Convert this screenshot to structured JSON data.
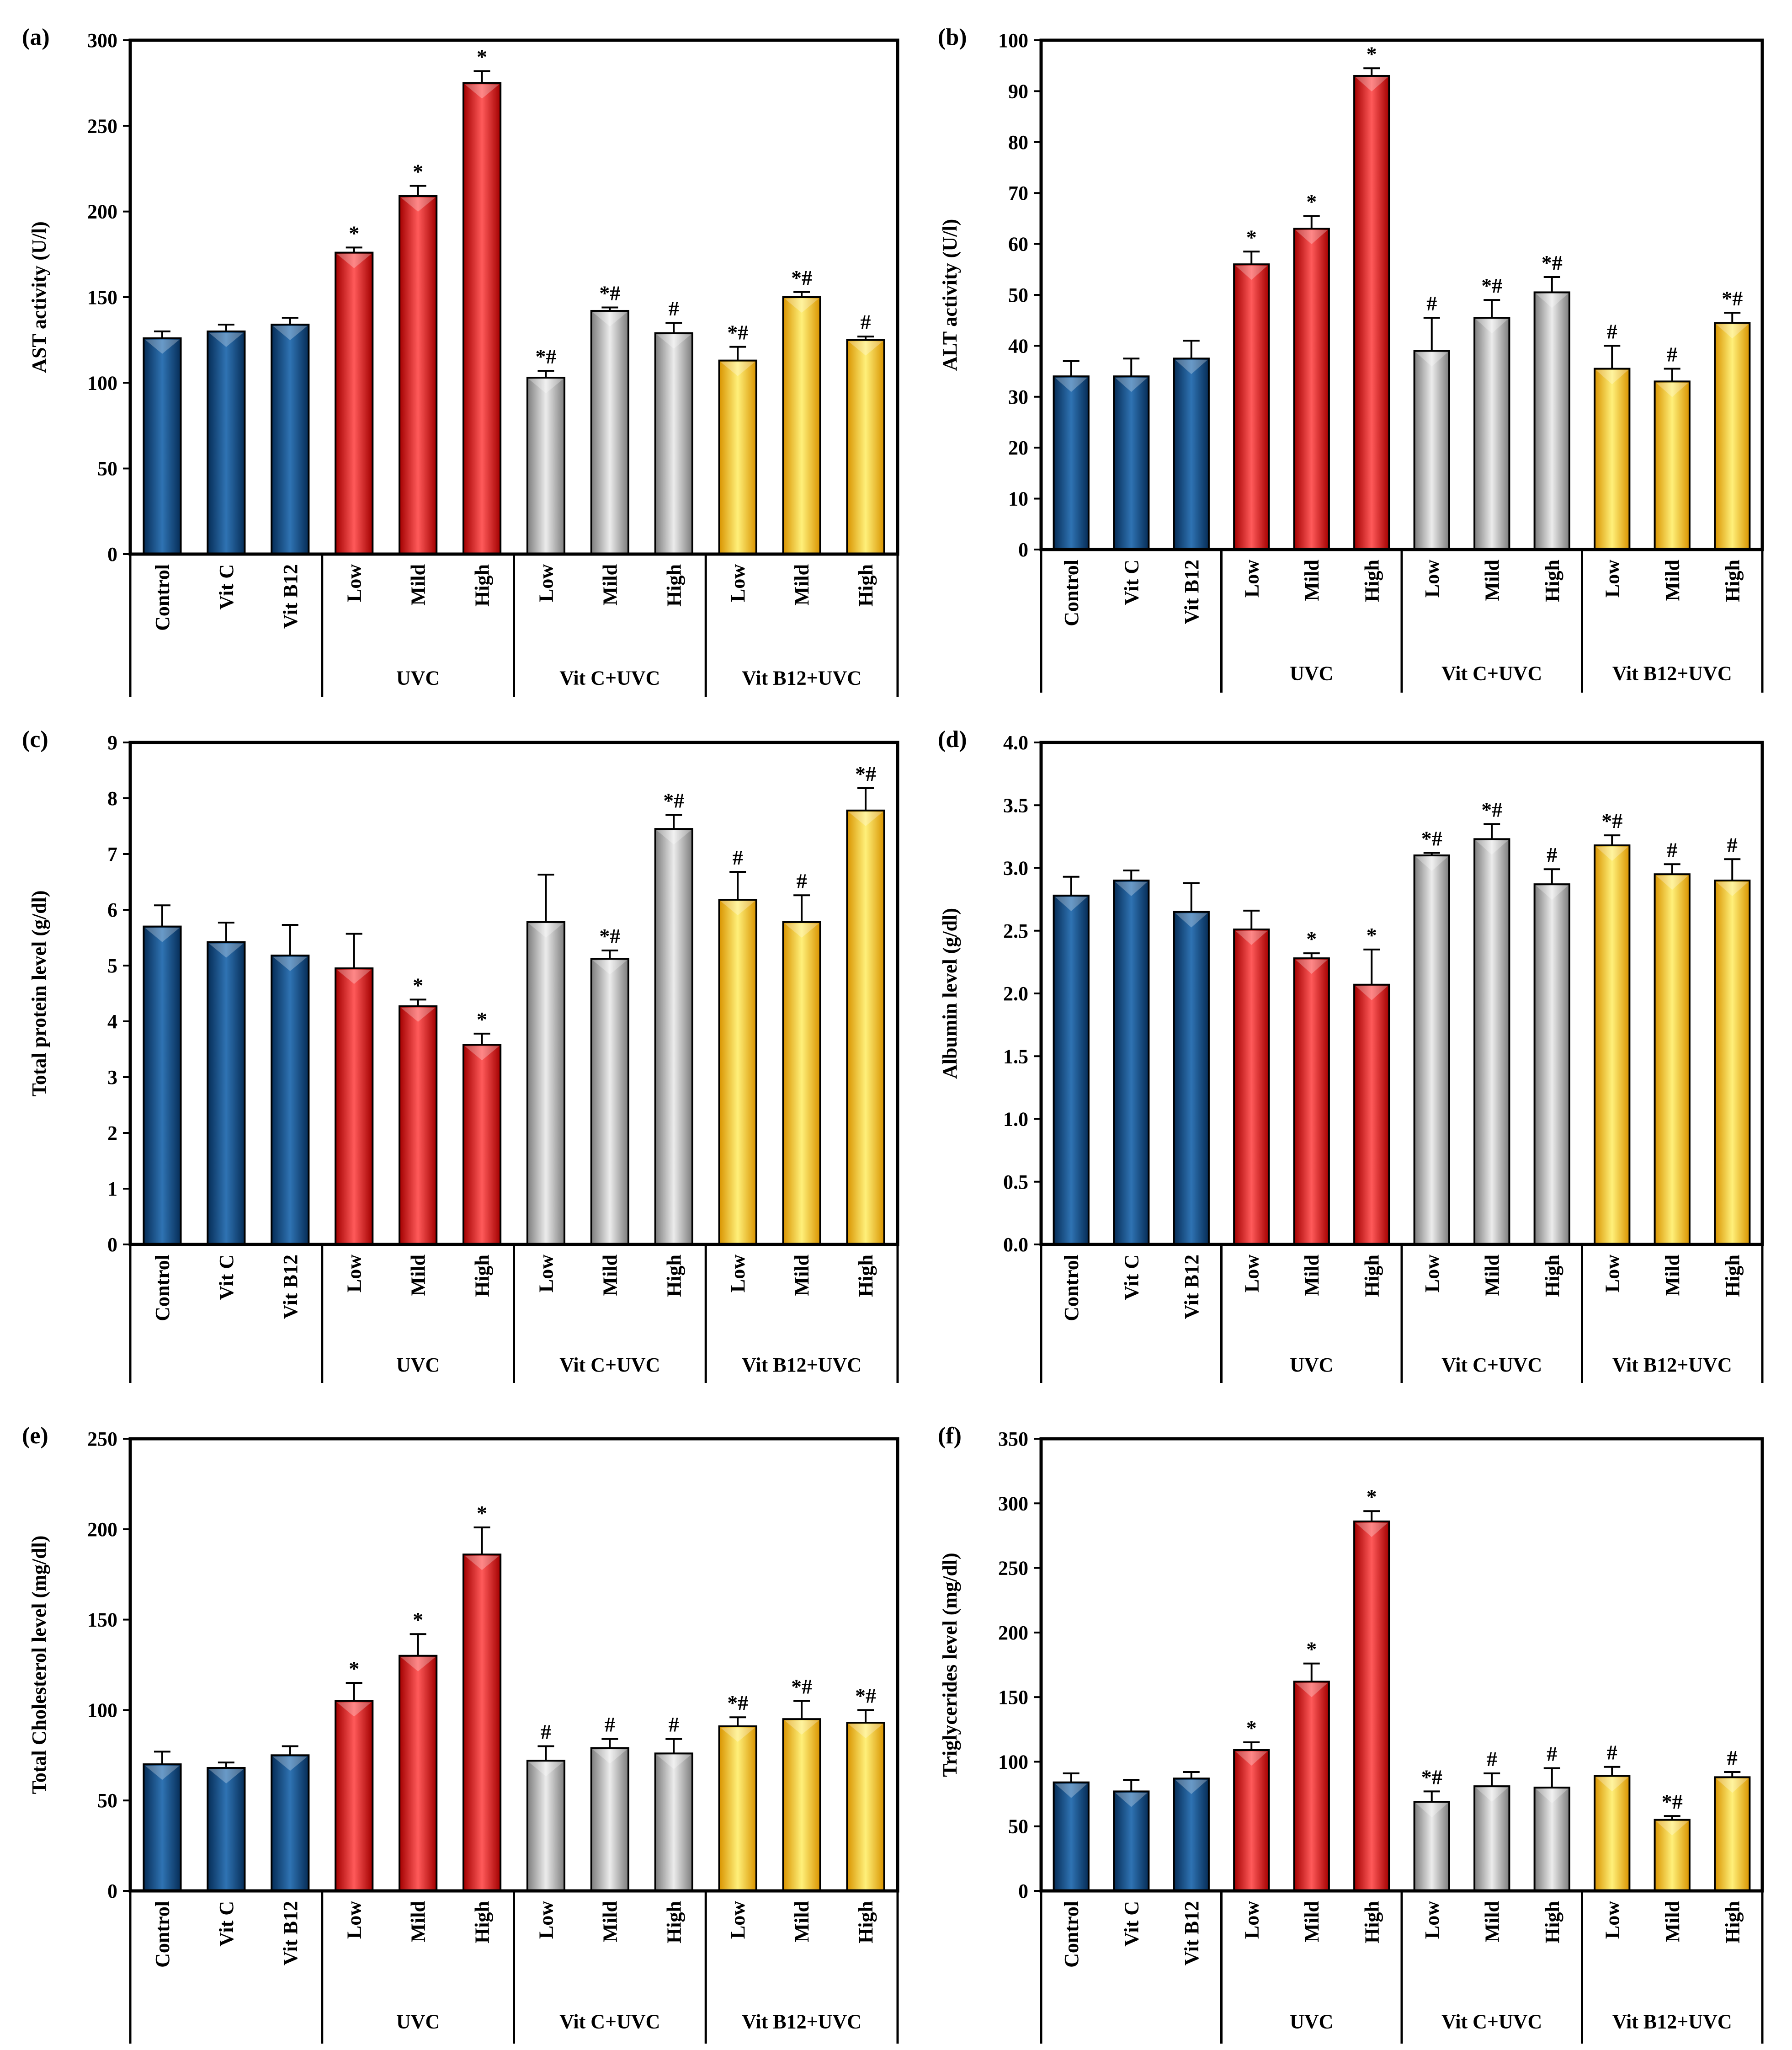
{
  "figure": {
    "category_labels": [
      "Control",
      "Vit C",
      "Vit B12",
      "Low",
      "Mild",
      "High",
      "Low",
      "Mild",
      "High",
      "Low",
      "Mild",
      "High"
    ],
    "groups": [
      "UVC",
      "Vit C+UVC",
      "Vit B12+UVC"
    ],
    "group_colors": [
      "#0d4a86",
      "#ee1111",
      "#b4b4b4",
      "#ffc800"
    ]
  },
  "chart_data": [
    {
      "type": "bar",
      "panel": "(a)",
      "ylabel": "AST activity (U/l)",
      "ylim": [
        0,
        300
      ],
      "yticks": [
        0,
        50,
        100,
        150,
        200,
        250,
        300
      ],
      "tick_decimals": 0,
      "values": [
        126,
        130,
        134,
        176,
        209,
        275,
        103,
        142,
        129,
        113,
        150,
        125
      ],
      "errors": [
        4,
        4,
        4,
        3,
        6,
        7,
        4,
        2,
        6,
        8,
        3,
        2
      ],
      "annotations": [
        "",
        "",
        "",
        "*",
        "*",
        "*",
        "*#",
        "*#",
        "#",
        "*#",
        "*#",
        "#"
      ]
    },
    {
      "type": "bar",
      "panel": "(b)",
      "ylabel": "ALT activity (U/l)",
      "ylim": [
        0,
        100
      ],
      "yticks": [
        0,
        10,
        20,
        30,
        40,
        50,
        60,
        70,
        80,
        90,
        100
      ],
      "tick_decimals": 0,
      "values": [
        34,
        34,
        37.5,
        56,
        63,
        93,
        39,
        45.5,
        50.5,
        35.5,
        33,
        44.5
      ],
      "errors": [
        3,
        3.5,
        3.5,
        2.5,
        2.5,
        1.5,
        6.5,
        3.5,
        3,
        4.5,
        2.5,
        2
      ],
      "annotations": [
        "",
        "",
        "",
        "*",
        "*",
        "*",
        "#",
        "*#",
        "*#",
        "#",
        "#",
        "*#"
      ]
    },
    {
      "type": "bar",
      "panel": "(c)",
      "ylabel": "Total protein level (g/dl)",
      "ylim": [
        0,
        9
      ],
      "yticks": [
        0,
        1,
        2,
        3,
        4,
        5,
        6,
        7,
        8,
        9
      ],
      "tick_decimals": 0,
      "values": [
        5.7,
        5.42,
        5.18,
        4.95,
        4.27,
        3.58,
        5.78,
        5.12,
        7.45,
        6.18,
        5.78,
        7.78
      ],
      "errors": [
        0.38,
        0.35,
        0.55,
        0.62,
        0.12,
        0.2,
        0.85,
        0.15,
        0.25,
        0.5,
        0.48,
        0.4
      ],
      "annotations": [
        "",
        "",
        "",
        "",
        "*",
        "*",
        "",
        "*#",
        "*#",
        "#",
        "#",
        "*#"
      ]
    },
    {
      "type": "bar",
      "panel": "(d)",
      "ylabel": "Albumin level (g/dl)",
      "ylim": [
        0,
        4
      ],
      "yticks": [
        0,
        0.5,
        1,
        1.5,
        2,
        2.5,
        3,
        3.5,
        4
      ],
      "tick_decimals": 1,
      "values": [
        2.78,
        2.9,
        2.65,
        2.51,
        2.28,
        2.07,
        3.1,
        3.23,
        2.87,
        3.18,
        2.95,
        2.9
      ],
      "errors": [
        0.15,
        0.08,
        0.23,
        0.15,
        0.04,
        0.28,
        0.02,
        0.12,
        0.12,
        0.08,
        0.08,
        0.17
      ],
      "annotations": [
        "",
        "",
        "",
        "",
        "*",
        "*",
        "*#",
        "*#",
        "#",
        "*#",
        "#",
        "#"
      ]
    },
    {
      "type": "bar",
      "panel": "(e)",
      "ylabel": "Total Cholesterol level (mg/dl)",
      "ylim": [
        0,
        250
      ],
      "yticks": [
        0,
        50,
        100,
        150,
        200,
        250
      ],
      "tick_decimals": 0,
      "values": [
        70,
        68,
        75,
        105,
        130,
        186,
        72,
        79,
        76,
        91,
        95,
        93
      ],
      "errors": [
        7,
        3,
        5,
        10,
        12,
        15,
        8,
        5,
        8,
        5,
        10,
        7
      ],
      "annotations": [
        "",
        "",
        "",
        "*",
        "*",
        "*",
        "#",
        "#",
        "#",
        "*#",
        "*#",
        "*#"
      ]
    },
    {
      "type": "bar",
      "panel": "(f)",
      "ylabel": "Triglycerides level (mg/dl)",
      "ylim": [
        0,
        350
      ],
      "yticks": [
        0,
        50,
        100,
        150,
        200,
        250,
        300,
        350
      ],
      "tick_decimals": 0,
      "values": [
        84,
        77,
        87,
        109,
        162,
        286,
        69,
        81,
        80,
        89,
        55,
        88
      ],
      "errors": [
        7,
        9,
        5,
        6,
        14,
        8,
        8,
        10,
        15,
        7,
        3,
        4
      ],
      "annotations": [
        "",
        "",
        "",
        "*",
        "*",
        "*",
        "*#",
        "#",
        "#",
        "#",
        "*#",
        "#"
      ]
    }
  ]
}
